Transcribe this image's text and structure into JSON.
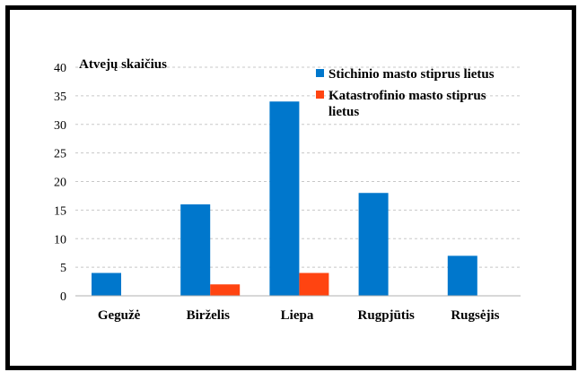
{
  "chart_data": {
    "type": "bar",
    "title": "",
    "ylabel": "Atvejų skaičius",
    "xlabel": "",
    "ylim": [
      0,
      40
    ],
    "yticks": [
      0,
      5,
      10,
      15,
      20,
      25,
      30,
      35,
      40
    ],
    "grid": true,
    "legend_position": "top-right",
    "categories": [
      "Gegužė",
      "Birželis",
      "Liepa",
      "Rugpjūtis",
      "Rugsėjis"
    ],
    "series": [
      {
        "name": "Stichinio masto stiprus lietus",
        "color": "#0077CC",
        "values": [
          4,
          16,
          34,
          18,
          7
        ]
      },
      {
        "name": "Katastrofinio masto stiprus lietus",
        "color": "#FF4411",
        "values": [
          0,
          2,
          4,
          0,
          0
        ]
      }
    ]
  }
}
